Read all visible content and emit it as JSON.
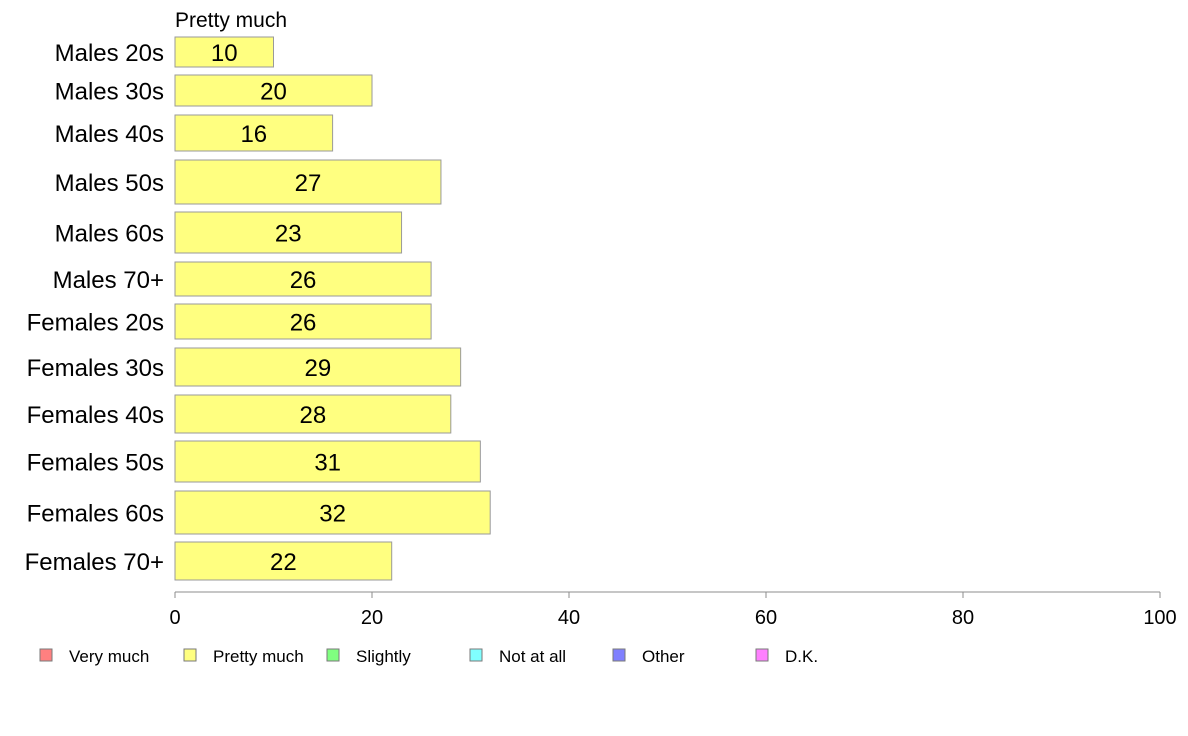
{
  "chart_data": {
    "type": "bar",
    "orientation": "horizontal",
    "panel_label": "Pretty much",
    "categories": [
      "Males 20s",
      "Males 30s",
      "Males 40s",
      "Males 50s",
      "Males 60s",
      "Males 70+",
      "Females 20s",
      "Females 30s",
      "Females 40s",
      "Females 50s",
      "Females 60s",
      "Females 70+"
    ],
    "series": [
      {
        "name": "Pretty much",
        "values": [
          10,
          20,
          16,
          27,
          23,
          26,
          26,
          29,
          28,
          31,
          32,
          22
        ]
      }
    ],
    "xlim": [
      0,
      100
    ],
    "xticks": [
      0,
      20,
      40,
      60,
      80,
      100
    ],
    "grid": false,
    "legend_position": "bottom",
    "legend": [
      {
        "label": "Very much",
        "color": "#ff8080"
      },
      {
        "label": "Pretty much",
        "color": "#ffff80"
      },
      {
        "label": "Slightly",
        "color": "#80ff80"
      },
      {
        "label": "Not at all",
        "color": "#80ffff"
      },
      {
        "label": "Other",
        "color": "#8080ff"
      },
      {
        "label": "D.K.",
        "color": "#ff80ff"
      }
    ],
    "bar_color": "#ffff80"
  }
}
